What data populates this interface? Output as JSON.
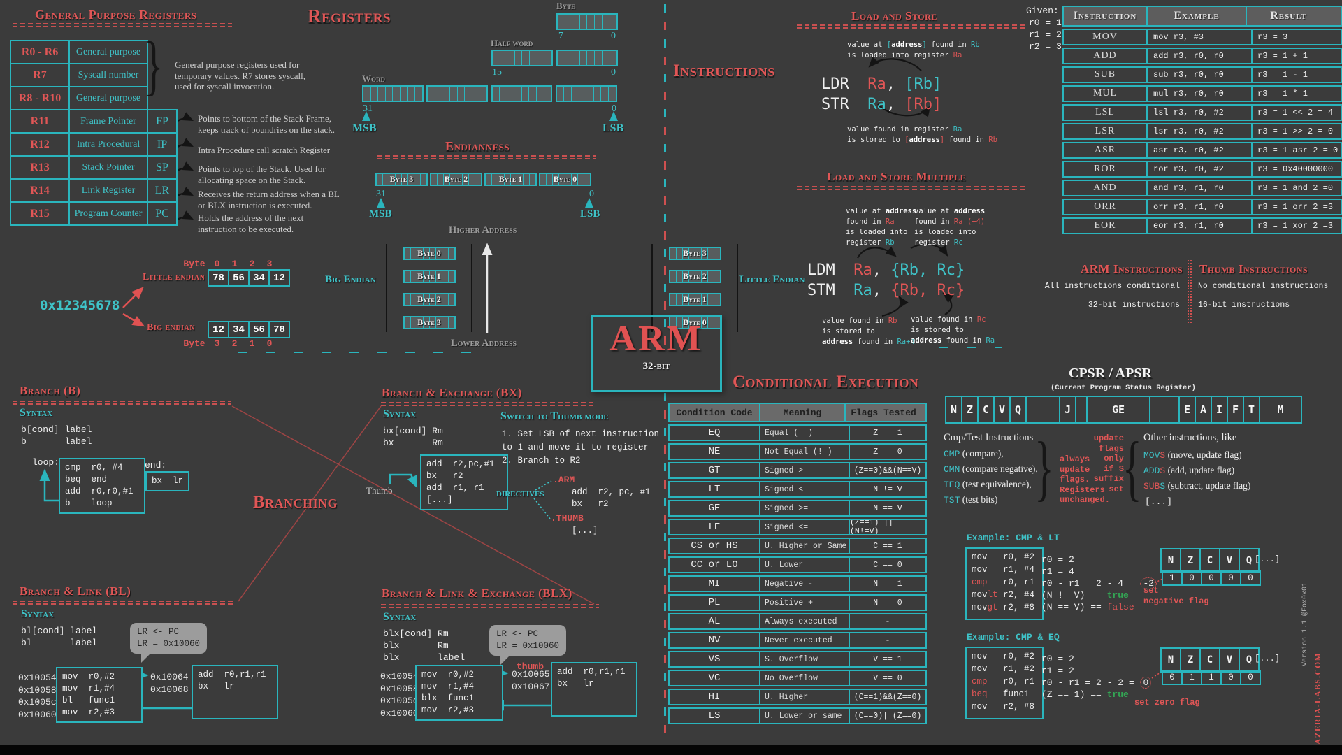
{
  "gpr": {
    "title": "General Purpose Registers",
    "rows": [
      {
        "reg": "R0 - R6",
        "desc": "General purpose",
        "alias": ""
      },
      {
        "reg": "R7",
        "desc": "Syscall number",
        "alias": ""
      },
      {
        "reg": "R8 - R10",
        "desc": "General purpose",
        "alias": ""
      },
      {
        "reg": "R11",
        "desc": "Frame Pointer",
        "alias": "FP"
      },
      {
        "reg": "R12",
        "desc": "Intra Procedural",
        "alias": "IP"
      },
      {
        "reg": "R13",
        "desc": "Stack Pointer",
        "alias": "SP"
      },
      {
        "reg": "R14",
        "desc": "Link Register",
        "alias": "LR"
      },
      {
        "reg": "R15",
        "desc": "Program Counter",
        "alias": "PC"
      }
    ],
    "brace_note": "General purpose registers used for temporary values. R7 stores syscall, used for syscall invocation.",
    "notes": [
      "Points to bottom of the Stack Frame, keeps track of boundries on the stack.",
      "Intra Procedure call scratch Register",
      "Points to top of the Stack. Used for allocating space on the Stack.",
      "Receives the return address when a BL or BLX instruction is executed.",
      "Holds the address of the next instruction to be executed."
    ]
  },
  "registers": {
    "title": "Registers",
    "byte_label": "Byte",
    "half_label": "Half word",
    "word_label": "Word",
    "bit7": "7",
    "bit0": "0",
    "bit15": "15",
    "bit31": "31",
    "msb": "MSB",
    "lsb": "LSB"
  },
  "endianness": {
    "title": "Endianness",
    "reg_bytes": [
      "Byte 3",
      "Byte 2",
      "Byte 1",
      "Byte 0"
    ],
    "bit31": "31",
    "bit0": "0",
    "msb": "MSB",
    "lsb": "LSB",
    "higher": "Higher Address",
    "lower": "Lower Address",
    "big_label": "Big Endian",
    "little_label": "Little Endian",
    "big_stack": [
      "Byte 0",
      "Byte 1",
      "Byte 2",
      "Byte 3"
    ],
    "little_stack": [
      "Byte 3",
      "Byte 2",
      "Byte 1",
      "Byte 0"
    ]
  },
  "hex": {
    "value": "0x12345678",
    "little_label": "Little endian",
    "big_label": "Big endian",
    "byte_word_top": "Byte",
    "byte_word_bottom": "Byte",
    "little_indices": [
      "0",
      "1",
      "2",
      "3"
    ],
    "little_cells": [
      "78",
      "56",
      "34",
      "12"
    ],
    "big_cells": [
      "12",
      "34",
      "56",
      "78"
    ],
    "big_indices": [
      "3",
      "2",
      "1",
      "0"
    ]
  },
  "arm_logo": {
    "name": "ARM",
    "sub": "32-bit"
  },
  "instructions_title": "Instructions",
  "load_store": {
    "title": "Load and Store",
    "note_top": [
      {
        "t": "value at ",
        "c": "w"
      },
      {
        "t": "[",
        "c": "t"
      },
      {
        "t": "address",
        "c": "bw"
      },
      {
        "t": "]",
        "c": "t"
      },
      {
        "t": " found in ",
        "c": "w"
      },
      {
        "t": "Rb",
        "c": "t"
      },
      {
        "t": "\nis loaded into register ",
        "c": "w"
      },
      {
        "t": "Ra",
        "c": "r"
      }
    ],
    "ldr": [
      {
        "t": "LDR  ",
        "c": "w"
      },
      {
        "t": "Ra",
        "c": "r"
      },
      {
        "t": ", ",
        "c": "w"
      },
      {
        "t": "[Rb]",
        "c": "t"
      }
    ],
    "str": [
      {
        "t": "STR  ",
        "c": "w"
      },
      {
        "t": "Ra",
        "c": "t"
      },
      {
        "t": ", ",
        "c": "w"
      },
      {
        "t": "[Rb]",
        "c": "r"
      }
    ],
    "note_bottom": [
      {
        "t": "value found in register ",
        "c": "w"
      },
      {
        "t": "Ra",
        "c": "t"
      },
      {
        "t": "\nis stored to ",
        "c": "w"
      },
      {
        "t": "[",
        "c": "r"
      },
      {
        "t": "address",
        "c": "bw"
      },
      {
        "t": "]",
        "c": "r"
      },
      {
        "t": " found in ",
        "c": "w"
      },
      {
        "t": "Rb",
        "c": "r"
      }
    ]
  },
  "ldm_stm": {
    "title": "Load and Store Multiple",
    "note_tl": [
      {
        "t": "value at ",
        "c": "w"
      },
      {
        "t": "address",
        "c": "bw"
      },
      {
        "t": "\nfound in ",
        "c": "w"
      },
      {
        "t": "Ra",
        "c": "r"
      },
      {
        "t": "\nis loaded into\nregister ",
        "c": "w"
      },
      {
        "t": "Rb",
        "c": "t"
      }
    ],
    "note_tr": [
      {
        "t": "value at ",
        "c": "w"
      },
      {
        "t": "address",
        "c": "bw"
      },
      {
        "t": "\nfound in ",
        "c": "w"
      },
      {
        "t": "Ra (+4)",
        "c": "r"
      },
      {
        "t": "\nis loaded into\nregister ",
        "c": "w"
      },
      {
        "t": "Rc",
        "c": "t"
      }
    ],
    "ldm": [
      {
        "t": "LDM  ",
        "c": "w"
      },
      {
        "t": "Ra",
        "c": "r"
      },
      {
        "t": ", ",
        "c": "w"
      },
      {
        "t": "{Rb, Rc}",
        "c": "t"
      }
    ],
    "stm": [
      {
        "t": "STM  ",
        "c": "w"
      },
      {
        "t": "Ra",
        "c": "t"
      },
      {
        "t": ", ",
        "c": "w"
      },
      {
        "t": "{Rb, Rc}",
        "c": "r"
      }
    ],
    "note_bl": [
      {
        "t": "value found in ",
        "c": "w"
      },
      {
        "t": "Rb",
        "c": "r"
      },
      {
        "t": "\n is stored to\n",
        "c": "w"
      },
      {
        "t": "address",
        "c": "bw"
      },
      {
        "t": " found in ",
        "c": "w"
      },
      {
        "t": "Ra+4",
        "c": "t"
      }
    ],
    "note_br": [
      {
        "t": "value found in ",
        "c": "w"
      },
      {
        "t": "Rc",
        "c": "r"
      },
      {
        "t": "\nis stored to\n",
        "c": "w"
      },
      {
        "t": "address",
        "c": "bw"
      },
      {
        "t": " found in ",
        "c": "w"
      },
      {
        "t": "Ra",
        "c": "t"
      }
    ]
  },
  "given": {
    "label": "Given:",
    "lines": "r0 = 1\nr1 = 2\nr2 = 3"
  },
  "instr_table": {
    "headers": [
      "Instruction",
      "Example",
      "Result"
    ],
    "rows": [
      {
        "i": "MOV",
        "e": "mov r3, #3",
        "r": "r3 = 3"
      },
      {
        "i": "ADD",
        "e": "add r3, r0, r0",
        "r": "r3 = 1 + 1"
      },
      {
        "i": "SUB",
        "e": "sub r3, r0, r0",
        "r": "r3 = 1 - 1"
      },
      {
        "i": "MUL",
        "e": "mul r3, r0, r0",
        "r": "r3 = 1 * 1"
      },
      {
        "i": "LSL",
        "e": "lsl r3, r0, #2",
        "r": "r3 = 1 << 2 = 4"
      },
      {
        "i": "LSR",
        "e": "lsr r3, r0, #2",
        "r": "r3 = 1 >> 2 = 0"
      },
      {
        "i": "ASR",
        "e": "asr r3, r0, #2",
        "r": "r3 = 1 asr 2 = 0"
      },
      {
        "i": "ROR",
        "e": "ror r3, r0, #2",
        "r": "r3 = 0x40000000"
      },
      {
        "i": "AND",
        "e": "and r3, r1, r0",
        "r": "r3 = 1 and 2 =0"
      },
      {
        "i": "ORR",
        "e": "orr r3, r1, r0",
        "r": "r3 = 1 orr 2 =3"
      },
      {
        "i": "EOR",
        "e": "eor r3, r1, r0",
        "r": "r3 = 1 xor 2 =3"
      }
    ]
  },
  "arm_thumb": {
    "arm_title": "ARM Instructions",
    "thumb_title": "Thumb Instructions",
    "arm_lines": [
      "All instructions conditional",
      "32-bit instructions"
    ],
    "thumb_lines": [
      "No conditional instructions",
      "16-bit instructions"
    ]
  },
  "branch_b": {
    "title": "Branch (B)",
    "syntax_label": "Syntax",
    "syntax": "b[cond] label\nb       label",
    "loop_label": "loop:",
    "loop_code": "cmp  r0, #4\nbeq  end\nadd  r0,r0,#1\nb    loop",
    "end_label": "end:",
    "end_code": "bx  lr"
  },
  "branching_title": "Branching",
  "branch_bx": {
    "title": "Branch & Exchange (BX)",
    "syntax_label": "Syntax",
    "syntax": "bx[cond] Rm\nbx       Rm",
    "thumb_label": "Thumb",
    "code": "add  r2,pc,#1\nbx   r2\nadd  r1, r1\n[...]",
    "switch_title": "Switch to Thumb mode",
    "switch_text": "1. Set LSB of next instruction\nto 1 and move it to register\n2. Branch to R2",
    "directives_label": "directives",
    "arm_directive": ".ARM",
    "arm_code": "add  r2, pc, #1\nbx   r2",
    "thumb_directive": ".THUMB",
    "thumb_code": "[...]"
  },
  "branch_bl": {
    "title": "Branch & Link  (BL)",
    "syntax_label": "Syntax",
    "syntax": "bl[cond] label\nbl       label",
    "bubble": "LR <- PC\nLR = 0x10060",
    "addrs_left": "0x10054\n0x10058\n0x1005c\n0x10060",
    "code_left": "mov  r0,#2\nmov  r1,#4\nbl   func1\nmov  r2,#3",
    "addrs_right": "0x10064\n0x10068",
    "code_right": "add  r0,r1,r1\nbx   lr"
  },
  "branch_blx": {
    "title": "Branch & Link & Exchange (BLX)",
    "syntax_label": "Syntax",
    "syntax": "blx[cond] Rm\nblx       Rm\nblx       label",
    "bubble": "LR <- PC\nLR = 0x10060",
    "thumb_note": "thumb",
    "addrs_left": "0x10054\n0x10058\n0x1005c\n0x10060",
    "code_left": "mov  r0,#2\nmov  r1,#4\nblx  func1\nmov  r2,#3",
    "addrs_right": "0x10065\n0x10067",
    "code_right": "add  r0,r1,r1\nbx   lr"
  },
  "cond_exec": {
    "title": "Conditional Execution",
    "headers": [
      "Condition Code",
      "Meaning",
      "Flags Tested"
    ],
    "rows": [
      {
        "c": "EQ",
        "m": "Equal (==)",
        "f": "Z == 1"
      },
      {
        "c": "NE",
        "m": "Not Equal (!=)",
        "f": "Z == 0"
      },
      {
        "c": "GT",
        "m": "Signed >",
        "f": "(Z==0)&&(N==V)"
      },
      {
        "c": "LT",
        "m": "Signed <",
        "f": "N != V"
      },
      {
        "c": "GE",
        "m": "Signed >=",
        "f": "N == V"
      },
      {
        "c": "LE",
        "m": "Signed <=",
        "f": "(Z==1) || (N!=V)"
      },
      {
        "c": "CS or HS",
        "m": "U. Higher or Same",
        "f": "C == 1"
      },
      {
        "c": "CC or LO",
        "m": "U. Lower",
        "f": "C == 0"
      },
      {
        "c": "MI",
        "m": "Negative -",
        "f": "N == 1"
      },
      {
        "c": "PL",
        "m": "Positive +",
        "f": "N == 0"
      },
      {
        "c": "AL",
        "m": "Always executed",
        "f": "-"
      },
      {
        "c": "NV",
        "m": "Never executed",
        "f": "-"
      },
      {
        "c": "VS",
        "m": "S. Overflow",
        "f": "V == 1"
      },
      {
        "c": "VC",
        "m": "No Overflow",
        "f": "V == 0"
      },
      {
        "c": "HI",
        "m": "U. Higher",
        "f": "(C==1)&&(Z==0)"
      },
      {
        "c": "LS",
        "m": "U. Lower or same",
        "f": "(C==0)||(Z==0)"
      }
    ]
  },
  "cpsr": {
    "title": "CPSR / APSR",
    "subtitle": "(Current Program Status Register)",
    "fields": [
      "N",
      "Z",
      "C",
      "V",
      "Q",
      "",
      "J",
      "",
      "GE",
      "",
      "E",
      "A",
      "I",
      "F",
      "T",
      "M"
    ],
    "cmp_title": "Cmp/Test Instructions",
    "cmp_items": [
      [
        {
          "t": "CMP",
          "c": "t"
        },
        {
          "t": " (compare),",
          "c": "w"
        }
      ],
      [
        {
          "t": "CMN",
          "c": "t"
        },
        {
          "t": " (compare negative),",
          "c": "w"
        }
      ],
      [
        {
          "t": "TEQ",
          "c": "t"
        },
        {
          "t": " (test equivalence),",
          "c": "w"
        }
      ],
      [
        {
          "t": "TST",
          "c": "t"
        },
        {
          "t": " (test bits)",
          "c": "w"
        }
      ]
    ],
    "note_left": "always\nupdate\nflags.\nRegisters\nunchanged.",
    "note_right": "update\nflags\nonly\nif S\nsuffix\nset",
    "other_title": "Other instructions, like",
    "other_items": [
      [
        {
          "t": "MOV",
          "c": "t"
        },
        {
          "t": "S",
          "c": "r"
        },
        {
          "t": " (move, update flag)",
          "c": "w"
        }
      ],
      [
        {
          "t": "ADD",
          "c": "t"
        },
        {
          "t": "S",
          "c": "r"
        },
        {
          "t": " (add, update flag)",
          "c": "w"
        }
      ],
      [
        {
          "t": "SUB",
          "c": "r"
        },
        {
          "t": "S",
          "c": "t"
        },
        {
          "t": " (subtract, update flag)",
          "c": "w"
        }
      ]
    ],
    "other_more": "[...]"
  },
  "example_lt": {
    "label": "Example: CMP & LT",
    "code": [
      "mov   r0, #2",
      "mov   r1, #4",
      [
        {
          "t": "cmp",
          "c": "r"
        },
        {
          "t": "   r0, r1",
          "c": "w"
        }
      ],
      [
        {
          "t": "mov",
          "c": "w"
        },
        {
          "t": "lt",
          "c": "r"
        },
        {
          "t": " r2, #4",
          "c": "w"
        }
      ],
      [
        {
          "t": "mov",
          "c": "w"
        },
        {
          "t": "gt",
          "c": "r"
        },
        {
          "t": " r2, #8",
          "c": "w"
        }
      ]
    ],
    "explain": [
      "r0 = 2",
      "r1 = 4",
      [
        {
          "t": "r0 - r1 = 2 - 4 = ",
          "c": "w"
        },
        {
          "t": "-2",
          "c": "circ"
        }
      ],
      [
        {
          "t": "(N != V) == ",
          "c": "w"
        },
        {
          "t": "true",
          "c": "g"
        }
      ],
      [
        {
          "t": "(N == V) == ",
          "c": "w"
        },
        {
          "t": "false",
          "c": "r"
        }
      ]
    ],
    "note": "set\nnegative flag",
    "flags": [
      "N",
      "Z",
      "C",
      "V",
      "Q"
    ],
    "more": "[...]",
    "values": [
      "1",
      "0",
      "0",
      "0",
      "0"
    ]
  },
  "example_eq": {
    "label": "Example: CMP & EQ",
    "code": [
      "mov   r0, #2",
      "mov   r1, #2",
      [
        {
          "t": "cmp",
          "c": "r"
        },
        {
          "t": "   r0, r1",
          "c": "w"
        }
      ],
      [
        {
          "t": "beq",
          "c": "r"
        },
        {
          "t": "   func1",
          "c": "w"
        }
      ],
      [
        {
          "t": "mov",
          "c": "w"
        },
        {
          "t": "   r2, #8",
          "c": "w"
        }
      ]
    ],
    "explain": [
      "r0 = 2",
      "r1 = 2",
      [
        {
          "t": "r0 - r1 = 2 - 2 = ",
          "c": "w"
        },
        {
          "t": "0",
          "c": "circ"
        }
      ],
      [
        {
          "t": "(Z == 1) == ",
          "c": "w"
        },
        {
          "t": "true",
          "c": "g"
        }
      ]
    ],
    "note": "set zero flag",
    "flags": [
      "N",
      "Z",
      "C",
      "V",
      "Q"
    ],
    "more": "[...]",
    "values": [
      "0",
      "1",
      "1",
      "0",
      "0"
    ]
  },
  "credits": {
    "version": "Version 1.1 @Fox0x01",
    "site": "AZERIA-LABS.COM"
  }
}
